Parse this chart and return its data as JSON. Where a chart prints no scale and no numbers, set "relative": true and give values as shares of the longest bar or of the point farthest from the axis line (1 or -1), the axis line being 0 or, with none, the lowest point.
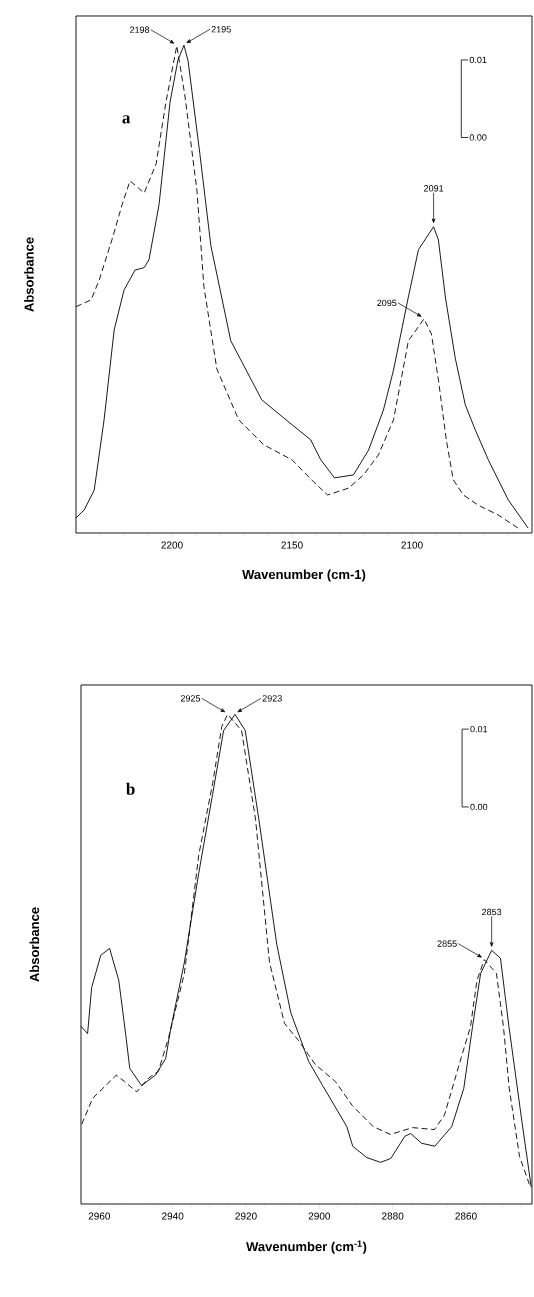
{
  "chart_data": [
    {
      "type": "line",
      "relative": true,
      "xlabel": "Wavenumber (cm-1)",
      "ylabel": "Absorbance",
      "xlim": [
        2240,
        2050
      ],
      "xticks": [
        2200,
        2150,
        2100,
        {
          "value": 2240,
          "label": null
        },
        {
          "value": 2230,
          "label": null
        },
        {
          "value": 2220,
          "label": null
        },
        {
          "value": 2210,
          "label": null
        },
        {
          "value": 2190,
          "label": null
        },
        {
          "value": 2180,
          "label": null
        },
        {
          "value": 2170,
          "label": null
        },
        {
          "value": 2160,
          "label": null
        },
        {
          "value": 2140,
          "label": null
        },
        {
          "value": 2130,
          "label": null
        },
        {
          "value": 2120,
          "label": null
        },
        {
          "value": 2110,
          "label": null
        },
        {
          "value": 2090,
          "label": null
        },
        {
          "value": 2080,
          "label": null
        },
        {
          "value": 2070,
          "label": null
        },
        {
          "value": 2060,
          "label": null
        },
        {
          "value": 2050,
          "label": null
        }
      ],
      "annotations": [
        "a",
        "0.01",
        "0.00",
        {
          "text": "2198",
          "x": 2198,
          "y": 0.999
        },
        {
          "text": "2195",
          "x": 2195,
          "y": 1.0
        },
        {
          "text": "2095",
          "x": 2095,
          "y": 0.439
        },
        {
          "text": "2091",
          "x": 2091,
          "y": 0.628
        }
      ],
      "series": [
        {
          "color": "#000000",
          "line_style": "solid",
          "x": [
            2240,
            2236.6,
            2232.4,
            2228.3,
            2224.1,
            2220,
            2215.4,
            2211.6,
            2209.6,
            2205.4,
            2200.8,
            2197.5,
            2195,
            2193.3,
            2188.4,
            2183.8,
            2175.5,
            2162.6,
            2150,
            2142.2,
            2138,
            2132.3,
            2124.4,
            2118.1,
            2111.9,
            2107.7,
            2101.5,
            2097.3,
            2091,
            2089,
            2086.1,
            2082,
            2077.8,
            2073.6,
            2068.2,
            2059.9,
            2051.6
          ],
          "values": [
            0.031,
            0.047,
            0.088,
            0.232,
            0.416,
            0.498,
            0.539,
            0.544,
            0.56,
            0.673,
            0.884,
            0.97,
            1.0,
            0.968,
            0.778,
            0.589,
            0.394,
            0.273,
            0.222,
            0.191,
            0.15,
            0.113,
            0.119,
            0.17,
            0.252,
            0.334,
            0.484,
            0.581,
            0.628,
            0.601,
            0.484,
            0.359,
            0.263,
            0.211,
            0.15,
            0.068,
            0.01
          ]
        },
        {
          "color": "#000000",
          "line_style": "dashed",
          "x": [
            2240,
            2233.7,
            2230.3,
            2224.9,
            2220.8,
            2217.5,
            2211.6,
            2206.6,
            2202.5,
            2198,
            2194.6,
            2189.6,
            2186.7,
            2181.3,
            2172.2,
            2161.8,
            2150,
            2141,
            2135.2,
            2126.4,
            2120.2,
            2114,
            2107.7,
            2101.5,
            2095,
            2091.9,
            2089,
            2085.7,
            2082.8,
            2078.6,
            2072.4,
            2064.1,
            2055.8
          ],
          "values": [
            0.464,
            0.478,
            0.519,
            0.603,
            0.673,
            0.722,
            0.697,
            0.757,
            0.884,
            0.999,
            0.896,
            0.702,
            0.505,
            0.336,
            0.232,
            0.181,
            0.15,
            0.105,
            0.078,
            0.092,
            0.119,
            0.16,
            0.232,
            0.394,
            0.439,
            0.408,
            0.314,
            0.191,
            0.109,
            0.078,
            0.057,
            0.037,
            0.01
          ]
        }
      ]
    },
    {
      "type": "line",
      "relative": true,
      "xlabel": "Wavenumber (cm$^{-1}$)",
      "ylabel": "Absorbance",
      "xlim": [
        2965,
        2842
      ],
      "xticks": [
        2960,
        2940,
        2920,
        2900,
        2880,
        2860,
        {
          "value": 2965,
          "label": null
        },
        {
          "value": 2955,
          "label": null
        },
        {
          "value": 2950,
          "label": null
        },
        {
          "value": 2945,
          "label": null
        },
        {
          "value": 2935,
          "label": null
        },
        {
          "value": 2930,
          "label": null
        },
        {
          "value": 2925,
          "label": null
        },
        {
          "value": 2915,
          "label": null
        },
        {
          "value": 2910,
          "label": null
        },
        {
          "value": 2905,
          "label": null
        },
        {
          "value": 2895,
          "label": null
        },
        {
          "value": 2890,
          "label": null
        },
        {
          "value": 2885,
          "label": null
        },
        {
          "value": 2875,
          "label": null
        },
        {
          "value": 2870,
          "label": null
        },
        {
          "value": 2865,
          "label": null
        },
        {
          "value": 2855,
          "label": null
        },
        {
          "value": 2850,
          "label": null
        },
        {
          "value": 2845,
          "label": null
        }
      ],
      "annotations": [
        "b",
        "0.01",
        "0.00",
        {
          "text": "2925",
          "x": 2925,
          "y": 1.0
        },
        {
          "text": "2923",
          "x": 2923,
          "y": 1.0
        },
        {
          "text": "2855",
          "x": 2855,
          "y": 0.499
        },
        {
          "text": "2853",
          "x": 2853,
          "y": 0.518
        }
      ],
      "series": [
        {
          "color": "#000000",
          "line_style": "solid",
          "x": [
            2965,
            2963.2,
            2962.1,
            2959.6,
            2957.2,
            2954.7,
            2952.8,
            2951.7,
            2948.5,
            2944.7,
            2941.9,
            2940.6,
            2936.8,
            2932.9,
            2929.1,
            2926.1,
            2923,
            2920.2,
            2916.5,
            2911.6,
            2907.8,
            2902.9,
            2899.1,
            2892.5,
            2890.9,
            2887.1,
            2883.3,
            2880.5,
            2876.7,
            2875.1,
            2872.1,
            2868.5,
            2863.9,
            2860.6,
            2858.2,
            2856,
            2853,
            2850.6,
            2848.3,
            2844.7,
            2842.2
          ],
          "values": [
            0.363,
            0.348,
            0.442,
            0.508,
            0.522,
            0.457,
            0.346,
            0.277,
            0.242,
            0.263,
            0.297,
            0.355,
            0.494,
            0.675,
            0.837,
            0.967,
            1.0,
            0.967,
            0.786,
            0.53,
            0.391,
            0.291,
            0.242,
            0.158,
            0.118,
            0.095,
            0.085,
            0.093,
            0.138,
            0.144,
            0.124,
            0.118,
            0.158,
            0.236,
            0.363,
            0.471,
            0.518,
            0.502,
            0.363,
            0.166,
            0.034
          ]
        },
        {
          "color": "#000000",
          "line_style": "dashed",
          "x": [
            2964.8,
            2961.8,
            2957.7,
            2955.4,
            2953.1,
            2949.8,
            2946.6,
            2943.9,
            2941.1,
            2936.8,
            2932.9,
            2929.1,
            2926.6,
            2925,
            2921.2,
            2917.4,
            2913.6,
            2909.5,
            2905.7,
            2901.1,
            2895.6,
            2891,
            2885.3,
            2880.6,
            2874.6,
            2868.6,
            2865.9,
            2861.3,
            2858.8,
            2857,
            2855,
            2851.7,
            2849.8,
            2848.2,
            2845.4,
            2842.7
          ],
          "values": [
            0.163,
            0.216,
            0.246,
            0.263,
            0.25,
            0.229,
            0.257,
            0.271,
            0.34,
            0.471,
            0.712,
            0.859,
            0.975,
            1.0,
            0.967,
            0.786,
            0.494,
            0.369,
            0.334,
            0.285,
            0.25,
            0.201,
            0.158,
            0.142,
            0.156,
            0.152,
            0.181,
            0.299,
            0.361,
            0.457,
            0.499,
            0.471,
            0.363,
            0.236,
            0.097,
            0.04
          ]
        }
      ]
    }
  ]
}
